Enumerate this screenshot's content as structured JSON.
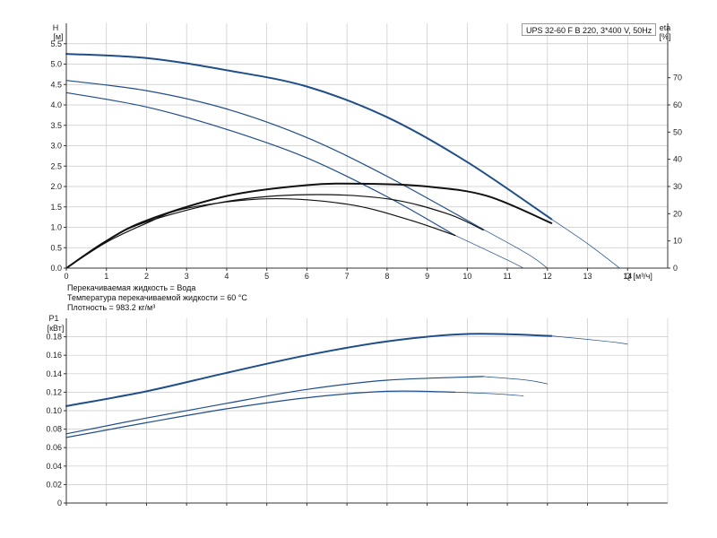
{
  "model_label": "UPS 32-60 F B 220, 3*400 V, 50Hz",
  "notes": {
    "liquid": "Перекачиваемая жидкость = Вода",
    "temperature": "Температура перекачиваемой жидкости = 60 °C",
    "density": "Плотность = 983.2 кг/м³"
  },
  "colors": {
    "curve_blue": "#1f4e89",
    "curve_black": "#111111",
    "grid": "#c8c8c8",
    "axis": "#333333"
  },
  "chart_data": [
    {
      "type": "line",
      "xlabel": "Q [м³/ч]",
      "ylabel": "H",
      "ylabel_unit": "[м]",
      "ylabel_right": "eta",
      "ylabel_right_unit": "[%]",
      "xlim": [
        0,
        15
      ],
      "ylim": [
        0,
        6
      ],
      "ylim_right": [
        0,
        90
      ],
      "x_ticks": [
        "0",
        "1",
        "2",
        "3",
        "4",
        "5",
        "6",
        "7",
        "8",
        "9",
        "10",
        "11",
        "12",
        "13",
        "14"
      ],
      "y_ticks": [
        "0.0",
        "0.5",
        "1.0",
        "1.5",
        "2.0",
        "2.5",
        "3.0",
        "3.5",
        "4.0",
        "4.5",
        "5.0",
        "5.5"
      ],
      "y_right_ticks": [
        "0",
        "10",
        "20",
        "30",
        "40",
        "50",
        "60",
        "70"
      ],
      "grid": true,
      "series": [
        {
          "axis": "left",
          "kind": "head",
          "color": "blue",
          "width": 2.0,
          "x": [
            0,
            2,
            4,
            6,
            8,
            10,
            12.1
          ],
          "y": [
            5.25,
            5.15,
            4.85,
            4.45,
            3.7,
            2.6,
            1.2
          ]
        },
        {
          "axis": "left",
          "kind": "head",
          "color": "blue",
          "width": 1.2,
          "x": [
            0,
            2,
            4,
            6,
            8,
            10.4
          ],
          "y": [
            4.6,
            4.35,
            3.9,
            3.2,
            2.25,
            0.95
          ]
        },
        {
          "axis": "left",
          "kind": "head",
          "color": "blue",
          "width": 1.2,
          "x": [
            0,
            2,
            4,
            6,
            8,
            9.7
          ],
          "y": [
            4.3,
            3.95,
            3.4,
            2.7,
            1.75,
            0.8
          ]
        },
        {
          "axis": "left",
          "kind": "head-extension",
          "color": "blue",
          "width": 0.7,
          "x": [
            12.1,
            13,
            13.8
          ],
          "y": [
            1.2,
            0.6,
            0
          ]
        },
        {
          "axis": "left",
          "kind": "head-extension",
          "color": "blue",
          "width": 0.7,
          "x": [
            10.4,
            11.5,
            12.0
          ],
          "y": [
            0.95,
            0.35,
            0
          ]
        },
        {
          "axis": "left",
          "kind": "head-extension",
          "color": "blue",
          "width": 0.7,
          "x": [
            9.7,
            11.0,
            11.4
          ],
          "y": [
            0.8,
            0.2,
            0
          ]
        },
        {
          "axis": "right",
          "kind": "efficiency",
          "color": "black",
          "width": 2.0,
          "x": [
            0,
            1,
            2,
            4,
            6,
            7.5,
            9,
            10.5,
            12.1
          ],
          "y": [
            0,
            10,
            17.5,
            26.5,
            30.5,
            31,
            30,
            26.5,
            16.5
          ]
        },
        {
          "axis": "right",
          "kind": "efficiency",
          "color": "black",
          "width": 1.2,
          "x": [
            0,
            1,
            2,
            4,
            6,
            8,
            9.5,
            10.4
          ],
          "y": [
            0,
            10,
            17,
            24.5,
            27,
            25.5,
            20,
            14
          ]
        },
        {
          "axis": "right",
          "kind": "efficiency",
          "color": "black",
          "width": 1.2,
          "x": [
            0,
            1,
            2,
            3,
            5,
            7,
            8.5,
            9.7
          ],
          "y": [
            0,
            9.5,
            16.5,
            22,
            25.5,
            23.5,
            18,
            12
          ]
        }
      ]
    },
    {
      "type": "line",
      "ylabel": "P1",
      "ylabel_unit": "[кВт]",
      "xlim": [
        0,
        15
      ],
      "ylim": [
        0,
        0.2
      ],
      "y_ticks": [
        "0",
        "0.02",
        "0.04",
        "0.06",
        "0.08",
        "0.10",
        "0.12",
        "0.14",
        "0.16",
        "0.18"
      ],
      "grid": true,
      "series": [
        {
          "kind": "power",
          "color": "blue",
          "width": 2.0,
          "x": [
            0,
            2,
            4,
            6,
            8,
            10,
            12.1
          ],
          "y": [
            0.105,
            0.121,
            0.141,
            0.16,
            0.175,
            0.183,
            0.181
          ]
        },
        {
          "kind": "power",
          "color": "blue",
          "width": 1.2,
          "x": [
            0,
            2,
            4,
            6,
            8,
            10.4
          ],
          "y": [
            0.075,
            0.092,
            0.108,
            0.123,
            0.133,
            0.137
          ]
        },
        {
          "kind": "power",
          "color": "blue",
          "width": 1.2,
          "x": [
            0,
            2,
            4,
            6,
            8,
            9.7
          ],
          "y": [
            0.071,
            0.087,
            0.102,
            0.114,
            0.121,
            0.12
          ]
        },
        {
          "kind": "power-extension",
          "color": "blue",
          "width": 0.7,
          "x": [
            12.1,
            13.5,
            14.0
          ],
          "y": [
            0.181,
            0.175,
            0.172
          ]
        },
        {
          "kind": "power-extension",
          "color": "blue",
          "width": 0.7,
          "x": [
            10.4,
            11.5,
            12.0
          ],
          "y": [
            0.137,
            0.133,
            0.129
          ]
        },
        {
          "kind": "power-extension",
          "color": "blue",
          "width": 0.7,
          "x": [
            9.7,
            10.8,
            11.4
          ],
          "y": [
            0.12,
            0.118,
            0.116
          ]
        }
      ]
    }
  ]
}
